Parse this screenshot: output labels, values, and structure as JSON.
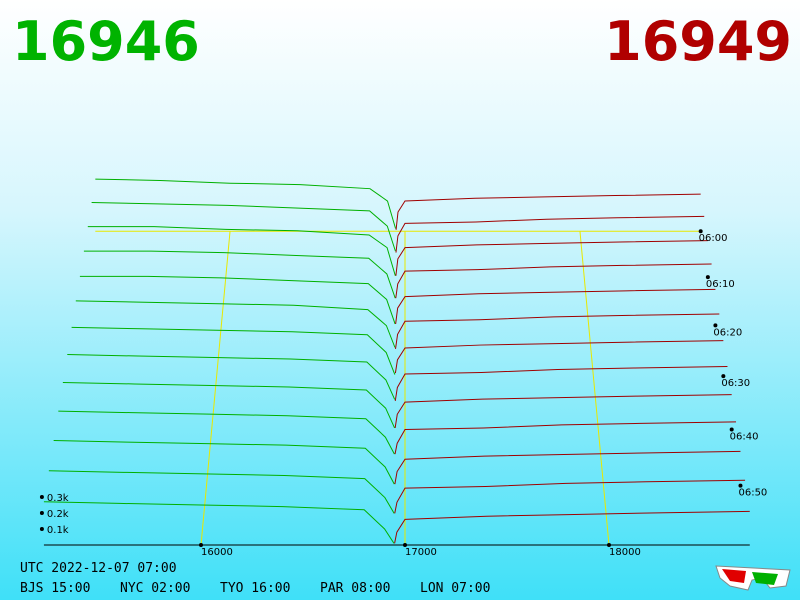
{
  "header": {
    "bid_price": "16946",
    "ask_price": "16949",
    "bid_color": "#00b300",
    "ask_color": "#b00000"
  },
  "depth_axis": {
    "ticks": [
      {
        "value": 0.1,
        "label": "0.1k"
      },
      {
        "value": 0.2,
        "label": "0.2k"
      },
      {
        "value": 0.3,
        "label": "0.3k"
      }
    ]
  },
  "price_axis": {
    "range": [
      15230,
      18690
    ],
    "ticks": [
      16000,
      17000,
      18000
    ],
    "grid_color": "#e8e800"
  },
  "time_axis": {
    "ticks": [
      "06:00",
      "06:10",
      "06:20",
      "06:30",
      "06:40",
      "06:50"
    ]
  },
  "footer": {
    "utc": "UTC 2022-12-07 07:00",
    "clocks": [
      "BJS 15:00",
      "NYC 02:00",
      "TYO 16:00",
      "PAR 08:00",
      "LON 07:00"
    ]
  },
  "bid_prices": [
    15230,
    15600,
    16000,
    16400,
    16800,
    16900,
    16946
  ],
  "ask_prices": [
    16949,
    16960,
    17000,
    17400,
    17800,
    18200,
    18690
  ],
  "bid_color": "#00b000",
  "ask_color": "#a00000",
  "snapshots": [
    {
      "bids": [
        0.38,
        0.37,
        0.35,
        0.34,
        0.31,
        0.22,
        0.02
      ],
      "asks": [
        0.01,
        0.14,
        0.22,
        0.24,
        0.25,
        0.26,
        0.27
      ]
    },
    {
      "bids": [
        0.37,
        0.36,
        0.35,
        0.33,
        0.31,
        0.2,
        0.02
      ],
      "asks": [
        0.01,
        0.13,
        0.22,
        0.23,
        0.25,
        0.26,
        0.27
      ]
    },
    {
      "bids": [
        0.36,
        0.36,
        0.34,
        0.33,
        0.3,
        0.21,
        0.01
      ],
      "asks": [
        0.01,
        0.13,
        0.21,
        0.23,
        0.24,
        0.25,
        0.26
      ]
    },
    {
      "bids": [
        0.35,
        0.35,
        0.34,
        0.32,
        0.3,
        0.19,
        0.02
      ],
      "asks": [
        0.02,
        0.12,
        0.21,
        0.22,
        0.24,
        0.25,
        0.26
      ]
    },
    {
      "bids": [
        0.34,
        0.34,
        0.33,
        0.31,
        0.29,
        0.18,
        0.01
      ],
      "asks": [
        0.01,
        0.12,
        0.2,
        0.22,
        0.23,
        0.24,
        0.25
      ]
    },
    {
      "bids": [
        0.34,
        0.33,
        0.32,
        0.31,
        0.28,
        0.17,
        0.02
      ],
      "asks": [
        0.01,
        0.11,
        0.2,
        0.21,
        0.23,
        0.24,
        0.25
      ]
    },
    {
      "bids": [
        0.33,
        0.32,
        0.31,
        0.3,
        0.28,
        0.16,
        0.01
      ],
      "asks": [
        0.02,
        0.11,
        0.19,
        0.21,
        0.22,
        0.23,
        0.24
      ]
    },
    {
      "bids": [
        0.32,
        0.31,
        0.3,
        0.29,
        0.27,
        0.15,
        0.02
      ],
      "asks": [
        0.01,
        0.1,
        0.19,
        0.2,
        0.22,
        0.23,
        0.24
      ]
    },
    {
      "bids": [
        0.31,
        0.3,
        0.29,
        0.28,
        0.26,
        0.14,
        0.01
      ],
      "asks": [
        0.01,
        0.1,
        0.18,
        0.2,
        0.21,
        0.22,
        0.23
      ]
    },
    {
      "bids": [
        0.3,
        0.29,
        0.28,
        0.27,
        0.25,
        0.13,
        0.02
      ],
      "asks": [
        0.02,
        0.09,
        0.18,
        0.19,
        0.21,
        0.22,
        0.23
      ]
    },
    {
      "bids": [
        0.29,
        0.28,
        0.27,
        0.26,
        0.24,
        0.12,
        0.01
      ],
      "asks": [
        0.01,
        0.09,
        0.17,
        0.19,
        0.2,
        0.21,
        0.22
      ]
    },
    {
      "bids": [
        0.28,
        0.27,
        0.26,
        0.25,
        0.23,
        0.11,
        0.01
      ],
      "asks": [
        0.01,
        0.08,
        0.17,
        0.18,
        0.2,
        0.21,
        0.22
      ]
    },
    {
      "bids": [
        0.27,
        0.26,
        0.25,
        0.24,
        0.22,
        0.1,
        0.01
      ],
      "asks": [
        0.01,
        0.08,
        0.16,
        0.18,
        0.19,
        0.2,
        0.21
      ]
    }
  ]
}
